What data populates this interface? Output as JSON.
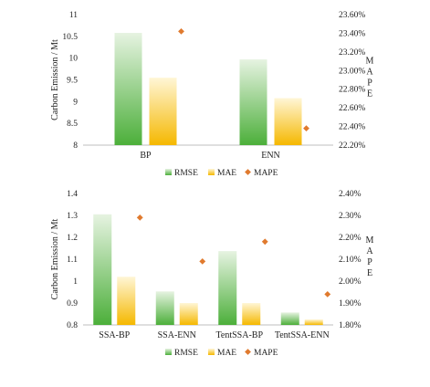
{
  "chart_data": [
    {
      "type": "bar",
      "categories": [
        "BP",
        "ENN"
      ],
      "series": [
        {
          "name": "RMSE",
          "axis": "left",
          "values": [
            10.58,
            9.97
          ],
          "color": "#4caf3a"
        },
        {
          "name": "MAE",
          "axis": "left",
          "values": [
            9.55,
            9.08
          ],
          "color": "#f5b800"
        },
        {
          "name": "MAPE",
          "axis": "right",
          "kind": "marker",
          "values": [
            23.42,
            22.38
          ],
          "color": "#e07a2e"
        }
      ],
      "ylabel": "Carbon Emission / Mt",
      "y2label": "MAPE",
      "ylim": [
        8,
        11
      ],
      "yticks": [
        "8",
        "8.5",
        "9",
        "9.5",
        "10",
        "10.5",
        "11"
      ],
      "y2lim": [
        22.2,
        23.6
      ],
      "y2ticks": [
        "22.20%",
        "22.40%",
        "22.60%",
        "22.80%",
        "23.00%",
        "23.20%",
        "23.40%",
        "23.60%"
      ],
      "legend": "bottom"
    },
    {
      "type": "bar",
      "categories": [
        "SSA-BP",
        "SSA-ENN",
        "TentSSA-BP",
        "TentSSA-ENN"
      ],
      "series": [
        {
          "name": "RMSE",
          "axis": "left",
          "values": [
            1.305,
            0.953,
            1.137,
            0.857
          ],
          "color": "#4caf3a"
        },
        {
          "name": "MAE",
          "axis": "left",
          "values": [
            1.02,
            0.9,
            0.9,
            0.825
          ],
          "color": "#f5b800"
        },
        {
          "name": "MAPE",
          "axis": "right",
          "kind": "marker",
          "values": [
            2.29,
            2.09,
            2.18,
            1.94
          ],
          "color": "#e07a2e"
        }
      ],
      "ylabel": "Carbon Emission / Mt",
      "y2label": "MAPE",
      "ylim": [
        0.8,
        1.4
      ],
      "yticks": [
        "0.8",
        "0.9",
        "1",
        "1.1",
        "1.2",
        "1.3",
        "1.4"
      ],
      "y2lim": [
        1.8,
        2.4
      ],
      "y2ticks": [
        "1.80%",
        "1.90%",
        "2.00%",
        "2.10%",
        "2.20%",
        "2.30%",
        "2.40%"
      ],
      "legend": "bottom"
    }
  ]
}
